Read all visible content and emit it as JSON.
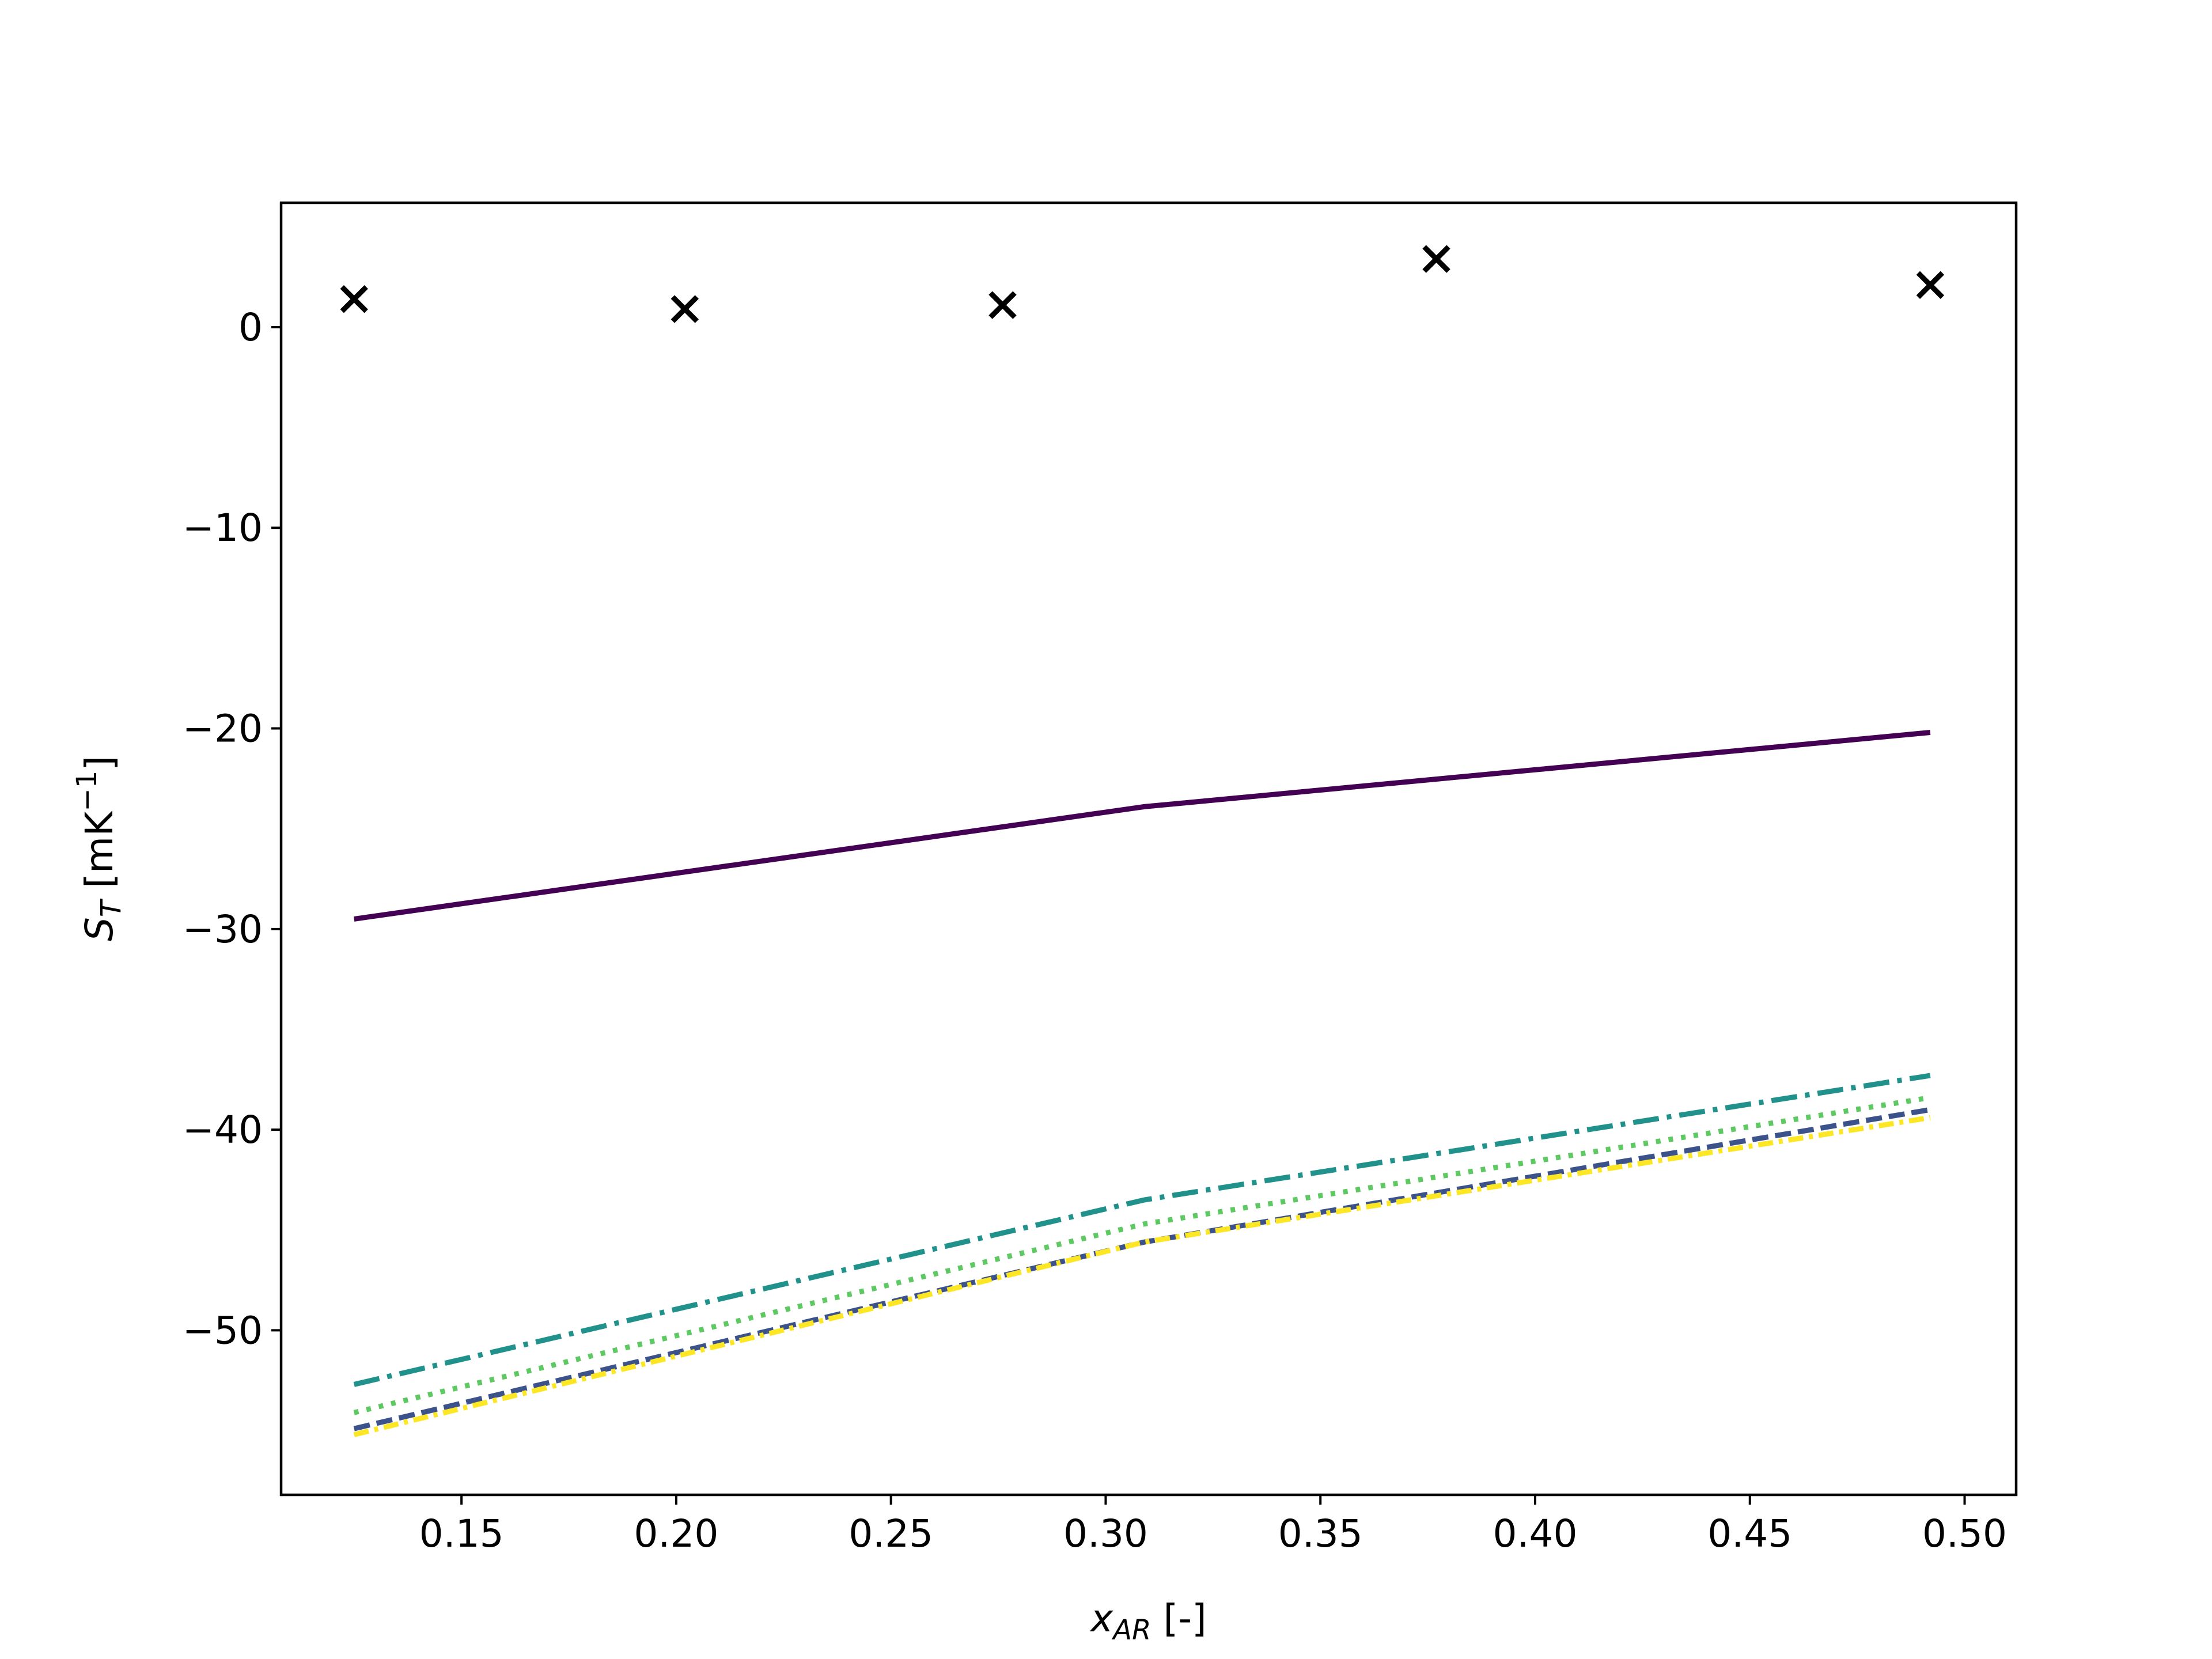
{
  "chart_data": {
    "type": "line",
    "title": "",
    "xlabel": {
      "main": "x",
      "sub": "AR",
      "suffix": " [-]"
    },
    "ylabel": {
      "main": "S",
      "sub": "T",
      "suffix": " [mK",
      "sup": "−1",
      "end": "]"
    },
    "xlim": [
      0.108,
      0.512
    ],
    "ylim": [
      -58.2,
      6.2
    ],
    "xticks": [
      0.15,
      0.2,
      0.25,
      0.3,
      0.35,
      0.4,
      0.45,
      0.5
    ],
    "xtick_labels": [
      "0.15",
      "0.20",
      "0.25",
      "0.30",
      "0.35",
      "0.40",
      "0.45",
      "0.50"
    ],
    "yticks": [
      0,
      -10,
      -20,
      -30,
      -40,
      -50
    ],
    "ytick_labels": [
      "0",
      "−10",
      "−20",
      "−30",
      "−40",
      "−50"
    ],
    "grid": false,
    "x": [
      0.125,
      0.309,
      0.492
    ],
    "series": [
      {
        "style": "solid",
        "color": "#440154",
        "values": [
          -29.5,
          -23.9,
          -20.2
        ]
      },
      {
        "style": "dashed",
        "color": "#3b528b",
        "values": [
          -54.9,
          -45.6,
          -39.0
        ]
      },
      {
        "style": "dashdot",
        "color": "#21918c",
        "values": [
          -52.7,
          -43.5,
          -37.3
        ]
      },
      {
        "style": "dotted",
        "color": "#5ec962",
        "values": [
          -54.1,
          -44.7,
          -38.4
        ]
      },
      {
        "style": "dashdot-dense",
        "color": "#fde725",
        "values": [
          -55.2,
          -45.6,
          -39.4
        ]
      }
    ],
    "markers": {
      "marker": "x",
      "color": "#000000",
      "x": [
        0.125,
        0.202,
        0.276,
        0.377,
        0.492
      ],
      "y": [
        1.4,
        0.9,
        1.1,
        3.4,
        2.1
      ]
    }
  }
}
